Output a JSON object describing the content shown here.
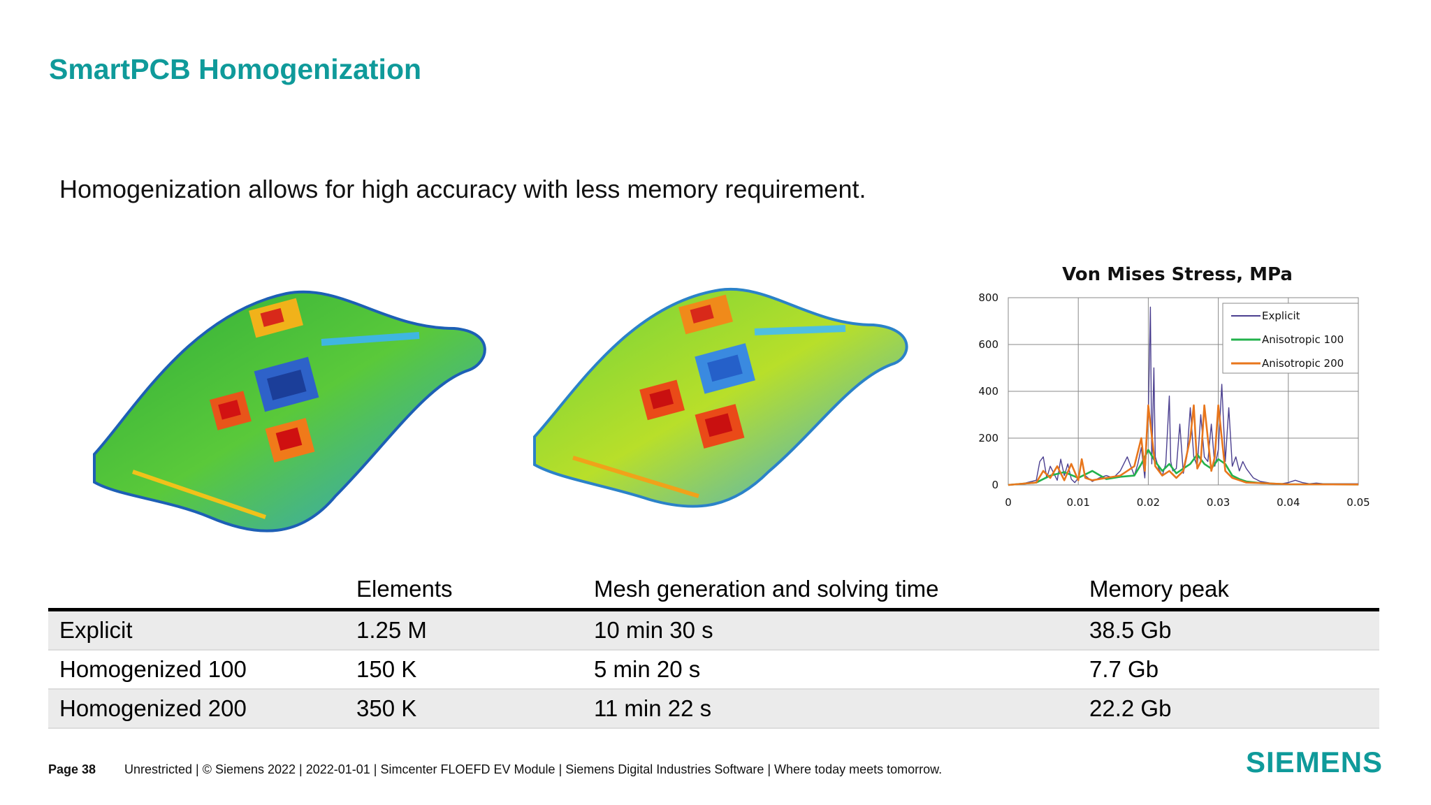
{
  "slide": {
    "title": "SmartPCB Homogenization",
    "subtitle": "Homogenization allows for high accuracy with less memory requirement."
  },
  "chart_data": {
    "type": "line",
    "title": "Von Mises Stress, MPa",
    "xlabel": "",
    "ylabel": "",
    "xlim": [
      0,
      0.05
    ],
    "ylim": [
      0,
      800
    ],
    "xticks": [
      "0",
      "0.01",
      "0.02",
      "0.03",
      "0.04",
      "0.05"
    ],
    "yticks": [
      "0",
      "200",
      "400",
      "600",
      "800"
    ],
    "grid": true,
    "legend_position": "top-right",
    "series": [
      {
        "name": "Explicit",
        "color": "#4b3f8f",
        "x": [
          0,
          0.002,
          0.004,
          0.0045,
          0.005,
          0.0055,
          0.006,
          0.007,
          0.0075,
          0.008,
          0.0085,
          0.009,
          0.0095,
          0.01,
          0.0105,
          0.011,
          0.012,
          0.013,
          0.014,
          0.015,
          0.016,
          0.017,
          0.018,
          0.0185,
          0.019,
          0.0195,
          0.02,
          0.0203,
          0.0205,
          0.0208,
          0.021,
          0.0215,
          0.022,
          0.0225,
          0.023,
          0.0232,
          0.0235,
          0.024,
          0.0245,
          0.025,
          0.0255,
          0.026,
          0.0265,
          0.027,
          0.0275,
          0.028,
          0.0285,
          0.029,
          0.0295,
          0.03,
          0.0305,
          0.031,
          0.0315,
          0.032,
          0.0325,
          0.033,
          0.0335,
          0.034,
          0.035,
          0.036,
          0.037,
          0.038,
          0.039,
          0.04,
          0.041,
          0.042,
          0.043,
          0.044,
          0.045,
          0.05
        ],
        "values": [
          0,
          5,
          20,
          100,
          120,
          30,
          80,
          20,
          110,
          40,
          90,
          25,
          10,
          30,
          100,
          40,
          15,
          30,
          40,
          30,
          60,
          120,
          40,
          90,
          160,
          30,
          300,
          760,
          90,
          500,
          120,
          70,
          40,
          90,
          380,
          100,
          60,
          70,
          260,
          50,
          120,
          330,
          120,
          80,
          300,
          120,
          100,
          260,
          80,
          150,
          430,
          100,
          330,
          80,
          120,
          60,
          100,
          70,
          30,
          15,
          10,
          5,
          5,
          10,
          20,
          10,
          5,
          8,
          5,
          5
        ]
      },
      {
        "name": "Anisotropic 100",
        "color": "#22b24c",
        "x": [
          0,
          0.004,
          0.006,
          0.008,
          0.01,
          0.012,
          0.014,
          0.016,
          0.018,
          0.019,
          0.02,
          0.021,
          0.022,
          0.023,
          0.024,
          0.025,
          0.026,
          0.027,
          0.028,
          0.029,
          0.03,
          0.031,
          0.032,
          0.033,
          0.034,
          0.036,
          0.04,
          0.05
        ],
        "values": [
          0,
          10,
          40,
          55,
          30,
          60,
          25,
          35,
          40,
          90,
          150,
          100,
          60,
          90,
          50,
          70,
          90,
          130,
          90,
          70,
          110,
          90,
          40,
          25,
          15,
          8,
          3,
          2
        ]
      },
      {
        "name": "Anisotropic 200",
        "color": "#e8761c",
        "x": [
          0,
          0.004,
          0.005,
          0.006,
          0.007,
          0.008,
          0.009,
          0.01,
          0.0105,
          0.011,
          0.012,
          0.014,
          0.016,
          0.017,
          0.018,
          0.019,
          0.0195,
          0.02,
          0.021,
          0.022,
          0.023,
          0.024,
          0.025,
          0.026,
          0.0265,
          0.027,
          0.0275,
          0.028,
          0.029,
          0.0295,
          0.03,
          0.031,
          0.032,
          0.033,
          0.034,
          0.036,
          0.04,
          0.05
        ],
        "values": [
          0,
          10,
          60,
          30,
          80,
          20,
          90,
          20,
          110,
          30,
          20,
          30,
          40,
          60,
          80,
          200,
          60,
          340,
          80,
          40,
          60,
          30,
          60,
          200,
          340,
          70,
          100,
          340,
          60,
          120,
          340,
          60,
          30,
          20,
          10,
          8,
          3,
          2
        ]
      }
    ]
  },
  "table": {
    "headers": [
      "",
      "Elements",
      "Mesh generation and solving time",
      "Memory peak"
    ],
    "rows": [
      [
        "Explicit",
        "1.25 M",
        "10 min 30 s",
        "38.5 Gb"
      ],
      [
        "Homogenized 100",
        "150 K",
        "5 min 20 s",
        "7.7 Gb"
      ],
      [
        "Homogenized 200",
        "350 K",
        "11 min 22 s",
        "22.2 Gb"
      ]
    ]
  },
  "footer": {
    "page": "Page 38",
    "text": "Unrestricted | © Siemens 2022 | 2022-01-01 | Simcenter FLOEFD EV Module | Siemens Digital Industries Software | Where today meets tomorrow.",
    "logo": "SIEMENS"
  },
  "colors": {
    "accent": "#0f9a9a"
  }
}
